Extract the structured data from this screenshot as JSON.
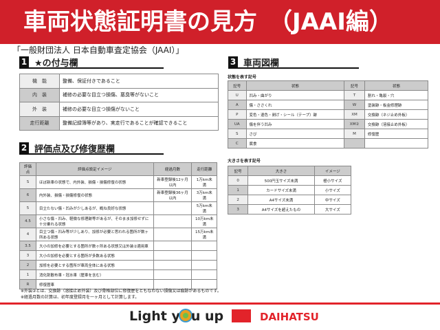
{
  "header": {
    "title": "車両状態証明書の見方　（JAAI編）"
  },
  "subtitle": "「一般財団法人 日本自動車査定協会（JAAI）」",
  "section1": {
    "num": "1",
    "title": "★の付与欄",
    "rows": [
      {
        "k": "機　能",
        "v": "整備、保証付きであること"
      },
      {
        "k": "内　装",
        "v": "補修の必要な目立つ損傷、悪臭等がないこと"
      },
      {
        "k": "外　装",
        "v": "補修の必要な目立つ損傷がないこと"
      },
      {
        "k": "走行距離",
        "v": "整備記録簿等があり、実走行であることが確認できること"
      }
    ]
  },
  "section2": {
    "num": "2",
    "title": "評価点及び修復歴欄",
    "headers": [
      "評価点",
      "評価点設定イメージ",
      "経過月数",
      "走行距離"
    ],
    "rows": [
      [
        "S",
        "ほぼ新車の状態で、内外装、損傷・損傷修復の状態",
        "新車登録後12ヶ月以内",
        "1万km未満"
      ],
      [
        "6",
        "内外装、損傷・損傷修復の状態",
        "新車登録後36ヶ月以内",
        "3万km未満"
      ],
      [
        "5",
        "目立たない傷・凹みが少しあるが、概ね良好な状態",
        "",
        "5万km未満"
      ],
      [
        "4.5",
        "小さな傷・凹み、軽微な修理跡等があるが、そのまま加修せずに十分乗れる状態",
        "",
        "10万km未満"
      ],
      [
        "4",
        "目立つ傷・凹み等が少しあり、加修が必要と思われる箇所が数ヶ所ある状態",
        "",
        "15万km未満"
      ],
      [
        "3.5",
        "大小の加修を必要とする箇所が数ヶ所ある状態又は外装②適用車",
        "",
        ""
      ],
      [
        "3",
        "大小の加修を必要とする箇所が多数ある状態",
        "",
        ""
      ],
      [
        "2",
        "加修を必要とする箇所が車両全体にある状態",
        "",
        ""
      ],
      [
        "1",
        "消化剤散布車・冠水車（歴車を含む）",
        "",
        ""
      ],
      [
        "R",
        "修復歴車",
        "",
        ""
      ]
    ]
  },
  "notes": [
    "※外装②とは、交換跡（溶接止め外装）及び骨格部位に修復歴をともなわない損傷又は痕跡があるものです。",
    "※経過月数の計算は、初年度登録月を一ヶ月として計算します。"
  ],
  "section3": {
    "num": "3",
    "title": "車両図欄",
    "state_label": "状態を表す記号",
    "state_headers": [
      "記号",
      "状態",
      "記号",
      "状態"
    ],
    "state_rows": [
      [
        "U",
        "凹み・曲がり",
        "T",
        "割れ・亀裂・穴"
      ],
      [
        "A",
        "傷・ささくれ",
        "W",
        "塗装跡・板金修理跡"
      ],
      [
        "P",
        "変色・退色・剥げ・シール（テープ）跡",
        "XM",
        "交換跡（ネジ止め外板）"
      ],
      [
        "UA",
        "傷を伴う凹み",
        "XM②",
        "交換跡（溶接止め外板）"
      ],
      [
        "S",
        "さび",
        "M",
        "修復歴"
      ],
      [
        "C",
        "腐食",
        "",
        ""
      ]
    ],
    "size_label": "大きさを表す記号",
    "size_headers": [
      "記号",
      "大きさ",
      "イメージ"
    ],
    "size_rows": [
      [
        "0",
        "500円玉サイズ未満",
        "極小サイズ"
      ],
      [
        "1",
        "カードサイズ未満",
        "小サイズ"
      ],
      [
        "2",
        "A4サイズ未満",
        "中サイズ"
      ],
      [
        "3",
        "A4サイズを超えたもの",
        "大サイズ"
      ]
    ]
  },
  "footer": {
    "slogan_pre": "Light y",
    "slogan_post": "u up",
    "brand": "DAIHATSU"
  },
  "colors": {
    "header": "#d0202a",
    "brand": "#e2232a"
  }
}
